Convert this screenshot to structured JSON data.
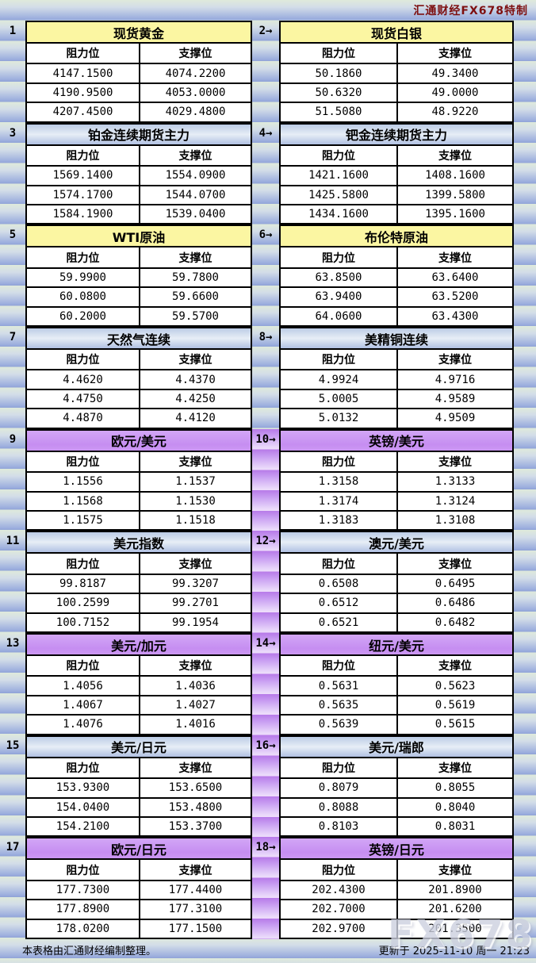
{
  "header": {
    "brand": "汇通财经FX678特制"
  },
  "columns": {
    "resistance": "阻力位",
    "support": "支撑位"
  },
  "panels": [
    {
      "label": "1",
      "title": "现货黄金",
      "theme": "yellow",
      "rows": [
        [
          "4147.1500",
          "4074.2200"
        ],
        [
          "4190.9500",
          "4053.0000"
        ],
        [
          "4207.4500",
          "4029.4800"
        ]
      ]
    },
    {
      "label": "2→",
      "title": "现货白银",
      "theme": "yellow",
      "rows": [
        [
          "50.1860",
          "49.3400"
        ],
        [
          "50.6320",
          "49.0000"
        ],
        [
          "51.5080",
          "48.9220"
        ]
      ]
    },
    {
      "label": "3",
      "title": "铂金连续期货主力",
      "theme": "blue",
      "rows": [
        [
          "1569.1400",
          "1554.0900"
        ],
        [
          "1574.1700",
          "1544.0700"
        ],
        [
          "1584.1900",
          "1539.0400"
        ]
      ]
    },
    {
      "label": "4→",
      "title": "钯金连续期货主力",
      "theme": "blue",
      "rows": [
        [
          "1421.1600",
          "1408.1600"
        ],
        [
          "1425.5800",
          "1399.5800"
        ],
        [
          "1434.1600",
          "1395.1600"
        ]
      ]
    },
    {
      "label": "5",
      "title": "WTI原油",
      "theme": "yellow",
      "rows": [
        [
          "59.9900",
          "59.7800"
        ],
        [
          "60.0800",
          "59.6600"
        ],
        [
          "60.2000",
          "59.5700"
        ]
      ]
    },
    {
      "label": "6→",
      "title": "布伦特原油",
      "theme": "yellow",
      "rows": [
        [
          "63.8500",
          "63.6400"
        ],
        [
          "63.9400",
          "63.5200"
        ],
        [
          "64.0600",
          "63.4300"
        ]
      ]
    },
    {
      "label": "7",
      "title": "天然气连续",
      "theme": "blue",
      "rows": [
        [
          "4.4620",
          "4.4370"
        ],
        [
          "4.4750",
          "4.4250"
        ],
        [
          "4.4870",
          "4.4120"
        ]
      ]
    },
    {
      "label": "8→",
      "title": "美精铜连续",
      "theme": "blue",
      "rows": [
        [
          "4.9924",
          "4.9716"
        ],
        [
          "5.0005",
          "4.9589"
        ],
        [
          "5.0132",
          "4.9509"
        ]
      ]
    },
    {
      "label": "9",
      "title": "欧元/美元",
      "theme": "purple",
      "rows": [
        [
          "1.1556",
          "1.1537"
        ],
        [
          "1.1568",
          "1.1530"
        ],
        [
          "1.1575",
          "1.1518"
        ]
      ]
    },
    {
      "label": "10→",
      "title": "英镑/美元",
      "theme": "purple",
      "rows": [
        [
          "1.3158",
          "1.3133"
        ],
        [
          "1.3174",
          "1.3124"
        ],
        [
          "1.3183",
          "1.3108"
        ]
      ]
    },
    {
      "label": "11",
      "title": "美元指数",
      "theme": "blue",
      "rows": [
        [
          "99.8187",
          "99.3207"
        ],
        [
          "100.2599",
          "99.2701"
        ],
        [
          "100.7152",
          "99.1954"
        ]
      ]
    },
    {
      "label": "12→",
      "title": "澳元/美元",
      "theme": "blue",
      "rows": [
        [
          "0.6508",
          "0.6495"
        ],
        [
          "0.6512",
          "0.6486"
        ],
        [
          "0.6521",
          "0.6482"
        ]
      ]
    },
    {
      "label": "13",
      "title": "美元/加元",
      "theme": "purple",
      "rows": [
        [
          "1.4056",
          "1.4036"
        ],
        [
          "1.4067",
          "1.4027"
        ],
        [
          "1.4076",
          "1.4016"
        ]
      ]
    },
    {
      "label": "14→",
      "title": "纽元/美元",
      "theme": "purple",
      "rows": [
        [
          "0.5631",
          "0.5623"
        ],
        [
          "0.5635",
          "0.5619"
        ],
        [
          "0.5639",
          "0.5615"
        ]
      ]
    },
    {
      "label": "15",
      "title": "美元/日元",
      "theme": "blue",
      "rows": [
        [
          "153.9300",
          "153.6500"
        ],
        [
          "154.0400",
          "153.4800"
        ],
        [
          "154.2100",
          "153.3700"
        ]
      ]
    },
    {
      "label": "16→",
      "title": "美元/瑞郎",
      "theme": "blue",
      "rows": [
        [
          "0.8079",
          "0.8055"
        ],
        [
          "0.8088",
          "0.8040"
        ],
        [
          "0.8103",
          "0.8031"
        ]
      ]
    },
    {
      "label": "17",
      "title": "欧元/日元",
      "theme": "purple",
      "rows": [
        [
          "177.7300",
          "177.4400"
        ],
        [
          "177.8900",
          "177.3100"
        ],
        [
          "178.0200",
          "177.1500"
        ]
      ]
    },
    {
      "label": "18→",
      "title": "英镑/日元",
      "theme": "purple",
      "rows": [
        [
          "202.4300",
          "201.8900"
        ],
        [
          "202.7000",
          "201.6200"
        ],
        [
          "202.9700",
          "201.3500"
        ]
      ]
    }
  ],
  "footer": {
    "note": "本表格由汇通财经编制整理。",
    "updated": "更新于 2025-11-10 周一 21:23",
    "watermark": "FX678"
  },
  "colors": {
    "accent_yellow": "#fbf6a2",
    "accent_blue": "#b9c9e5",
    "accent_purple": "#c68ef1",
    "brand_text": "#7d0f0f"
  }
}
